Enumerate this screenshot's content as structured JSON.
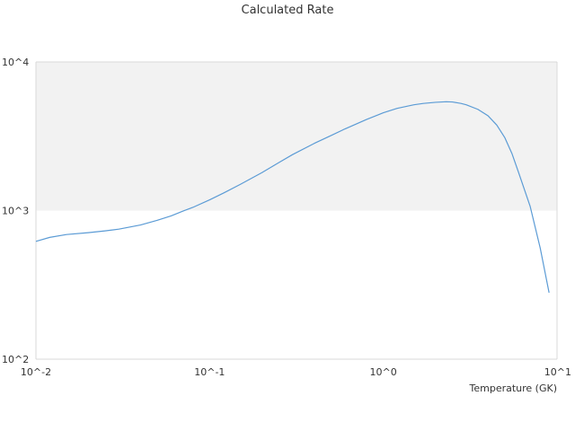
{
  "chart_data": {
    "type": "line",
    "title": "Calculated Rate",
    "xlabel": "Temperature (GK)",
    "ylabel": "",
    "x_scale": "log",
    "y_scale": "log",
    "xlim": [
      0.01,
      10
    ],
    "ylim": [
      100,
      10000
    ],
    "x_ticks": [
      0.01,
      0.1,
      1,
      10
    ],
    "x_tick_labels": [
      "10^-2",
      "10^-1",
      "10^0",
      "10^1"
    ],
    "y_ticks": [
      100,
      1000,
      10000
    ],
    "y_tick_labels": [
      "10^2",
      "10^3",
      "10^4"
    ],
    "grid": false,
    "band_colors": [
      "#f2f2f2",
      "#ffffff"
    ],
    "series": [
      {
        "color": "#5b9bd5",
        "x": [
          0.01,
          0.012,
          0.015,
          0.02,
          0.025,
          0.03,
          0.04,
          0.05,
          0.06,
          0.07,
          0.08,
          0.1,
          0.12,
          0.15,
          0.2,
          0.25,
          0.3,
          0.4,
          0.5,
          0.6,
          0.8,
          1.0,
          1.2,
          1.5,
          1.7,
          2.0,
          2.3,
          2.5,
          2.8,
          3.0,
          3.5,
          4.0,
          4.5,
          5.0,
          5.5,
          6.0,
          7.0,
          8.0,
          9.0
        ],
        "y": [
          620,
          660,
          690,
          710,
          730,
          750,
          800,
          860,
          920,
          990,
          1050,
          1180,
          1310,
          1500,
          1800,
          2100,
          2380,
          2830,
          3200,
          3540,
          4100,
          4550,
          4870,
          5150,
          5260,
          5350,
          5400,
          5380,
          5260,
          5150,
          4800,
          4350,
          3760,
          3100,
          2420,
          1810,
          1070,
          560,
          280
        ]
      }
    ]
  }
}
